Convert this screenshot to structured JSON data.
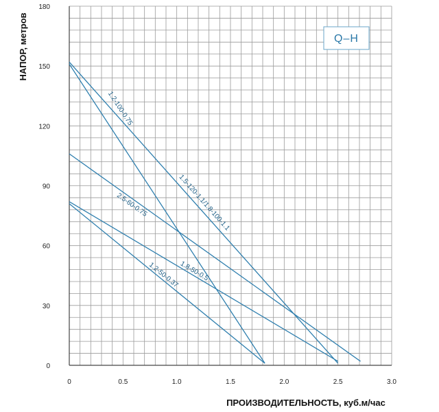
{
  "chart_data": {
    "type": "line",
    "title": "",
    "xlabel": "ПРОИЗВОДИТЕЛЬНОСТЬ, куб.м/час",
    "ylabel": "НАПОР, метров",
    "xlim": [
      0,
      3.0
    ],
    "ylim": [
      0,
      180
    ],
    "x_ticks": [
      "0",
      "0.5",
      "1.0",
      "1.5",
      "2.0",
      "2.5",
      "3.0"
    ],
    "y_ticks": [
      "0",
      "30",
      "60",
      "90",
      "120",
      "150",
      "180"
    ],
    "grid": true,
    "legend_box_text": "Q–H",
    "legend_position": "top-right",
    "line_color": "#2f7fae",
    "grid_color": "#9a9a9a",
    "series": [
      {
        "name": "1.2-100-0.75",
        "points": [
          [
            0,
            151
          ],
          [
            1.82,
            1
          ]
        ]
      },
      {
        "name": "1.5-120-1.1/1.8-100-1.1",
        "points": [
          [
            0,
            152
          ],
          [
            2.5,
            1
          ]
        ]
      },
      {
        "name": "2.5-60-0.75",
        "points": [
          [
            0,
            106
          ],
          [
            2.71,
            2
          ]
        ]
      },
      {
        "name": "1.8-50-0.5",
        "points": [
          [
            0,
            82
          ],
          [
            2.5,
            2
          ]
        ]
      },
      {
        "name": "1.2-50-0.37",
        "points": [
          [
            0,
            81
          ],
          [
            1.82,
            1
          ]
        ]
      }
    ]
  }
}
